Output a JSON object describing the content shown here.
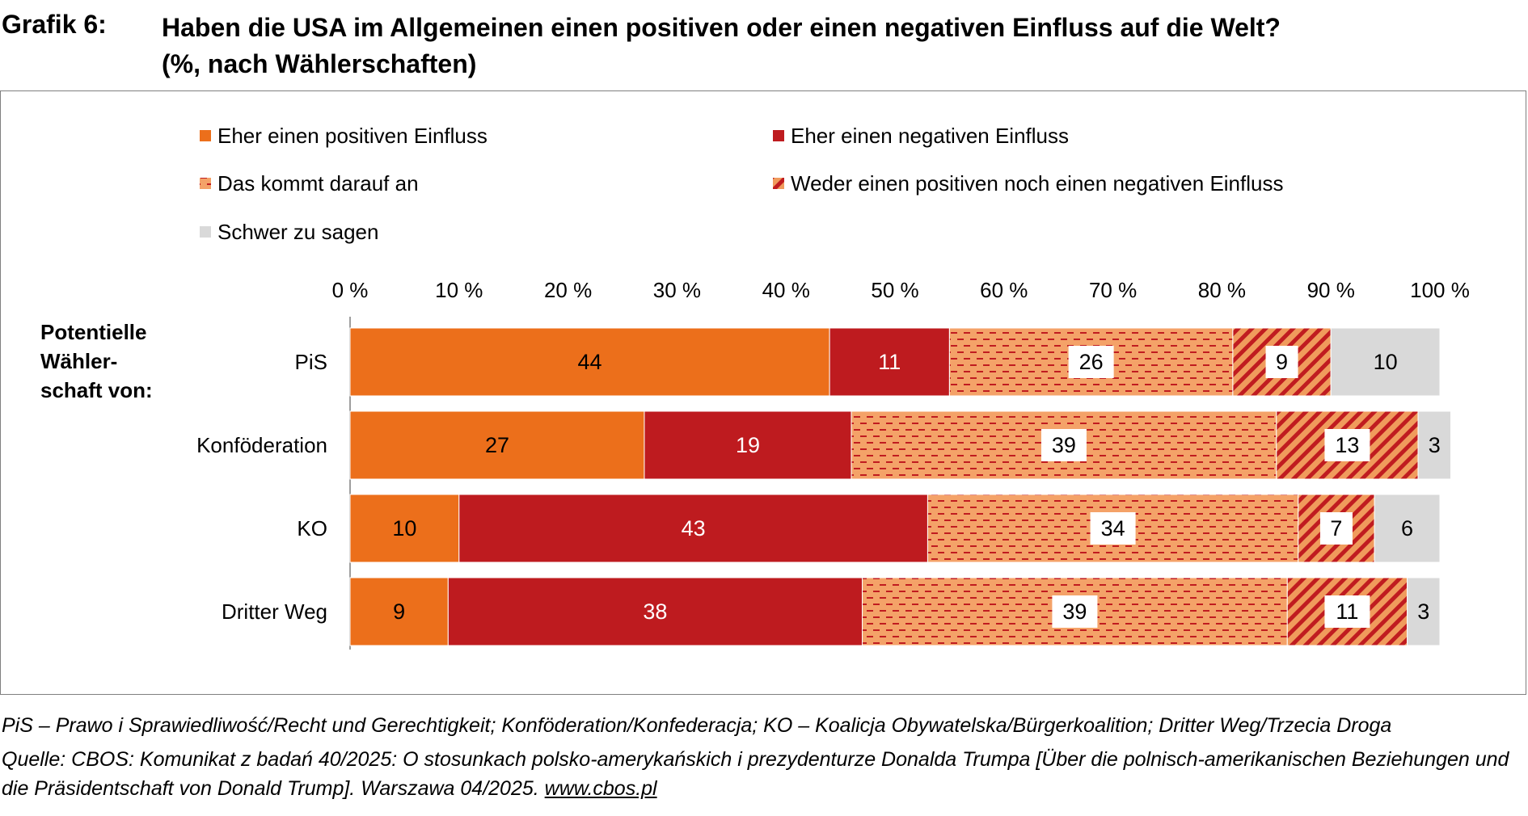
{
  "header": {
    "label": "Grafik 6:",
    "title_line1": "Haben die USA im Allgemeinen einen positiven oder einen negativen Einfluss auf die Welt?",
    "title_line2": "(%, nach Wählerschaften)"
  },
  "colors": {
    "positive": "#ec6f1b",
    "negative": "#be1b1f",
    "depends_bg": "#f4a268",
    "depends_dash": "#c01c20",
    "neither_bg": "#f09b5c",
    "neither_stripe": "#c01c20",
    "unsure": "#d9d9d9",
    "axis": "#7f7f7f"
  },
  "chart_data": {
    "type": "stacked-bar-horizontal",
    "title": "Haben die USA im Allgemeinen einen positiven oder einen negativen Einfluss auf die Welt?",
    "y_title": [
      "Potentielle",
      "Wähler-",
      "schaft von:"
    ],
    "xlim": [
      0,
      100
    ],
    "x_ticks": [
      "0 %",
      "10 %",
      "20 %",
      "30 %",
      "40 %",
      "50 %",
      "60 %",
      "70 %",
      "80 %",
      "90 %",
      "100 %"
    ],
    "categories": [
      "PiS",
      "Konföderation",
      "KO",
      "Dritter Weg"
    ],
    "legend_position": "top",
    "series": [
      {
        "name": "Eher einen positiven Einfluss",
        "key": "positive",
        "values": [
          44,
          27,
          10,
          9
        ]
      },
      {
        "name": "Eher einen negativen Einfluss",
        "key": "negative",
        "values": [
          11,
          19,
          43,
          38
        ]
      },
      {
        "name": "Das kommt darauf an",
        "key": "depends",
        "values": [
          26,
          39,
          34,
          39
        ]
      },
      {
        "name": "Weder einen positiven noch einen negativen Einfluss",
        "key": "neither",
        "values": [
          9,
          13,
          7,
          11
        ]
      },
      {
        "name": "Schwer zu sagen",
        "key": "unsure",
        "values": [
          10,
          3,
          6,
          3
        ]
      }
    ]
  },
  "footnotes": {
    "abbrev": "PiS – Prawo i Sprawiedliwość/Recht und Gerechtigkeit; Konföderation/Konfederacja; KO – Koalicja Obywatelska/Bürgerkoalition; Dritter Weg/Trzecia Droga",
    "source_text": "Quelle: CBOS: Komunikat z badań 40/2025: O stosunkach polsko-amerykańskich i prezydenturze Donalda Trumpa [Über die polnisch-amerikanischen Beziehungen und die Präsidentschaft von Donald Trump]. Warszawa 04/2025.",
    "source_link": "www.cbos.pl"
  }
}
